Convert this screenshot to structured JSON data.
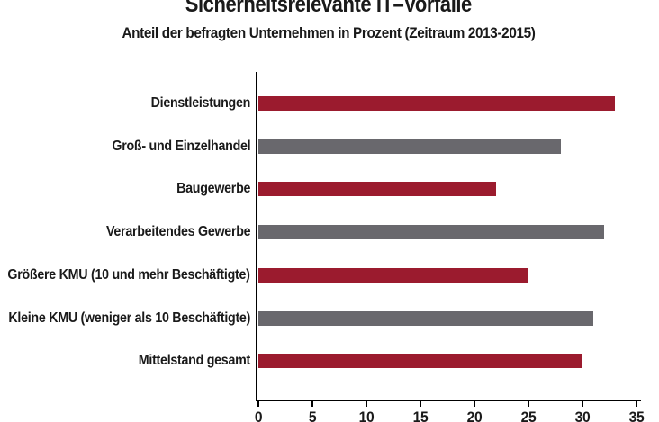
{
  "header": {
    "title": "Sicherheitsrelevante IT–Vorfälle",
    "subtitle": "Anteil der befragten Unternehmen in Prozent (Zeitraum 2013-2015)"
  },
  "colors": {
    "bar_red": "#9b1b2e",
    "bar_gray": "#69686d",
    "axis": "#000000",
    "text": "#1a1a1a",
    "background": "#ffffff"
  },
  "chart_data": {
    "type": "bar",
    "orientation": "horizontal",
    "title": "Sicherheitsrelevante IT–Vorfälle",
    "subtitle": "Anteil der befragten Unternehmen in Prozent (Zeitraum 2013-2015)",
    "categories": [
      "Dienstleistungen",
      "Groß- und Einzelhandel",
      "Baugewerbe",
      "Verarbeitendes Gewerbe",
      "Größere KMU (10 und mehr Beschäftigte)",
      "Kleine KMU (weniger als 10 Beschäftigte)",
      "Mittelstand gesamt"
    ],
    "values": [
      33,
      28,
      22,
      32,
      25,
      31,
      30
    ],
    "bar_colors": [
      "#9b1b2e",
      "#69686d",
      "#9b1b2e",
      "#69686d",
      "#9b1b2e",
      "#69686d",
      "#9b1b2e"
    ],
    "xlabel": "",
    "ylabel": "",
    "xlim": [
      0,
      35
    ],
    "xticks": [
      0,
      5,
      10,
      15,
      20,
      25,
      30,
      35
    ],
    "grid": false,
    "legend": false,
    "unit": "percent"
  }
}
